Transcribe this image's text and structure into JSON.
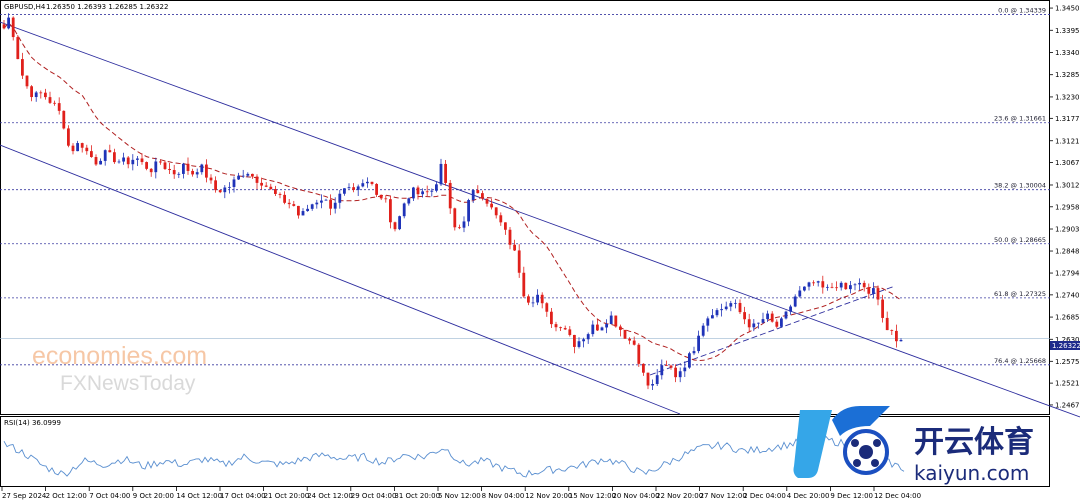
{
  "header": {
    "symbol": "GBPUSD,H4",
    "ohlc": "1.26350 1.26393 1.26285 1.26322"
  },
  "colors": {
    "bull": "#1f33b8",
    "bear": "#e0201b",
    "ma": "#b02020",
    "channel": "#2d2d9e",
    "fib": "#3a3aa0",
    "rsi": "#5a8fd0",
    "price_tag": "#1e2a8c"
  },
  "chart_data": [
    {
      "type": "candlestick",
      "title": "",
      "y_axis": {
        "range": [
          1.245,
          1.3465
        ],
        "ticks": [
          "1.34500",
          "1.33950",
          "1.33400",
          "1.32850",
          "1.32300",
          "1.31770",
          "1.31215",
          "1.30675",
          "1.30120",
          "1.29580",
          "1.29030",
          "1.28485",
          "1.27940",
          "1.27400",
          "1.26850",
          "1.26300",
          "1.25755",
          "1.25215",
          "1.24675"
        ]
      },
      "x_axis": {
        "ticks": [
          "27 Sep 2024",
          "2 Oct 12:00",
          "7 Oct 04:00",
          "9 Oct 20:00",
          "14 Oct 12:00",
          "17 Oct 04:00",
          "21 Oct 20:00",
          "24 Oct 12:00",
          "29 Oct 04:00",
          "31 Oct 20:00",
          "5 Nov 12:00",
          "8 Nov 04:00",
          "12 Nov 20:00",
          "15 Nov 12:00",
          "20 Nov 04:00",
          "22 Nov 20:00",
          "27 Nov 12:00",
          "2 Dec 04:00",
          "4 Dec 20:00",
          "9 Dec 12:00",
          "12 Dec 04:00"
        ]
      },
      "last_price": "1.26322",
      "fibonacci": [
        {
          "label": "0.0 @ 1.34339",
          "price": 1.34339
        },
        {
          "label": "23.6 @ 1.31661",
          "price": 1.31661
        },
        {
          "label": "38.2 @ 1.30004",
          "price": 1.30004
        },
        {
          "label": "50.0 @ 1.28665",
          "price": 1.28665
        },
        {
          "label": "61.8 @ 1.27325",
          "price": 1.27325
        },
        {
          "label": "76.4 @ 1.25668",
          "price": 1.25668
        }
      ],
      "price_path": [
        [
          0,
          1.34
        ],
        [
          4,
          1.343
        ],
        [
          10,
          1.338
        ],
        [
          16,
          1.33
        ],
        [
          22,
          1.326
        ],
        [
          30,
          1.323
        ],
        [
          38,
          1.324
        ],
        [
          46,
          1.322
        ],
        [
          54,
          1.32
        ],
        [
          60,
          1.316
        ],
        [
          64,
          1.311
        ],
        [
          70,
          1.31
        ],
        [
          76,
          1.312
        ],
        [
          84,
          1.309
        ],
        [
          92,
          1.307
        ],
        [
          100,
          1.309
        ],
        [
          108,
          1.308
        ],
        [
          116,
          1.307
        ],
        [
          124,
          1.307
        ],
        [
          132,
          1.308
        ],
        [
          140,
          1.306
        ],
        [
          148,
          1.305
        ],
        [
          156,
          1.307
        ],
        [
          164,
          1.305
        ],
        [
          172,
          1.304
        ],
        [
          180,
          1.306
        ],
        [
          188,
          1.304
        ],
        [
          196,
          1.306
        ],
        [
          204,
          1.303
        ],
        [
          210,
          1.3
        ],
        [
          218,
          1.3
        ],
        [
          226,
          1.301
        ],
        [
          234,
          1.303
        ],
        [
          242,
          1.305
        ],
        [
          250,
          1.303
        ],
        [
          258,
          1.302
        ],
        [
          266,
          1.3
        ],
        [
          274,
          1.298
        ],
        [
          282,
          1.297
        ],
        [
          290,
          1.296
        ],
        [
          296,
          1.293
        ],
        [
          302,
          1.295
        ],
        [
          310,
          1.297
        ],
        [
          318,
          1.298
        ],
        [
          326,
          1.296
        ],
        [
          334,
          1.298
        ],
        [
          342,
          1.3
        ],
        [
          350,
          1.299
        ],
        [
          358,
          1.301
        ],
        [
          366,
          1.302
        ],
        [
          372,
          1.3
        ],
        [
          378,
          1.298
        ],
        [
          384,
          1.298
        ],
        [
          388,
          1.289
        ],
        [
          394,
          1.292
        ],
        [
          400,
          1.296
        ],
        [
          406,
          1.299
        ],
        [
          412,
          1.3
        ],
        [
          418,
          1.3
        ],
        [
          426,
          1.299
        ],
        [
          432,
          1.302
        ],
        [
          438,
          1.306
        ],
        [
          444,
          1.299
        ],
        [
          448,
          1.291
        ],
        [
          454,
          1.29
        ],
        [
          460,
          1.293
        ],
        [
          466,
          1.298
        ],
        [
          472,
          1.3
        ],
        [
          478,
          1.299
        ],
        [
          484,
          1.297
        ],
        [
          490,
          1.294
        ],
        [
          496,
          1.292
        ],
        [
          502,
          1.289
        ],
        [
          508,
          1.286
        ],
        [
          514,
          1.282
        ],
        [
          518,
          1.276
        ],
        [
          522,
          1.273
        ],
        [
          528,
          1.273
        ],
        [
          534,
          1.274
        ],
        [
          540,
          1.27
        ],
        [
          546,
          1.268
        ],
        [
          552,
          1.266
        ],
        [
          558,
          1.267
        ],
        [
          564,
          1.265
        ],
        [
          570,
          1.262
        ],
        [
          576,
          1.263
        ],
        [
          582,
          1.264
        ],
        [
          588,
          1.266
        ],
        [
          594,
          1.266
        ],
        [
          600,
          1.267
        ],
        [
          606,
          1.269
        ],
        [
          612,
          1.267
        ],
        [
          618,
          1.265
        ],
        [
          624,
          1.263
        ],
        [
          630,
          1.262
        ],
        [
          636,
          1.257
        ],
        [
          642,
          1.252
        ],
        [
          648,
          1.251
        ],
        [
          654,
          1.255
        ],
        [
          660,
          1.256
        ],
        [
          666,
          1.256
        ],
        [
          672,
          1.254
        ],
        [
          678,
          1.256
        ],
        [
          684,
          1.258
        ],
        [
          690,
          1.261
        ],
        [
          696,
          1.266
        ],
        [
          702,
          1.268
        ],
        [
          708,
          1.27
        ],
        [
          714,
          1.27
        ],
        [
          720,
          1.271
        ],
        [
          726,
          1.272
        ],
        [
          732,
          1.271
        ],
        [
          738,
          1.269
        ],
        [
          744,
          1.267
        ],
        [
          750,
          1.266
        ],
        [
          756,
          1.267
        ],
        [
          762,
          1.269
        ],
        [
          768,
          1.267
        ],
        [
          774,
          1.266
        ],
        [
          780,
          1.268
        ],
        [
          786,
          1.271
        ],
        [
          792,
          1.274
        ],
        [
          798,
          1.275
        ],
        [
          804,
          1.276
        ],
        [
          810,
          1.277
        ],
        [
          816,
          1.276
        ],
        [
          822,
          1.275
        ],
        [
          828,
          1.276
        ],
        [
          834,
          1.277
        ],
        [
          840,
          1.275
        ],
        [
          846,
          1.276
        ],
        [
          852,
          1.277
        ],
        [
          858,
          1.276
        ],
        [
          864,
          1.274
        ],
        [
          870,
          1.276
        ],
        [
          874,
          1.272
        ],
        [
          878,
          1.268
        ],
        [
          884,
          1.266
        ],
        [
          890,
          1.265
        ],
        [
          894,
          1.261
        ],
        [
          898,
          1.262
        ],
        [
          902,
          1.2632
        ]
      ]
    },
    {
      "type": "line",
      "title": "",
      "indicator_label": "RSI(14) 36.0999",
      "rsi_path": [
        [
          0,
          62
        ],
        [
          20,
          52
        ],
        [
          40,
          38
        ],
        [
          60,
          30
        ],
        [
          80,
          44
        ],
        [
          100,
          40
        ],
        [
          120,
          46
        ],
        [
          140,
          38
        ],
        [
          160,
          44
        ],
        [
          180,
          40
        ],
        [
          200,
          46
        ],
        [
          220,
          40
        ],
        [
          240,
          48
        ],
        [
          260,
          42
        ],
        [
          280,
          40
        ],
        [
          300,
          46
        ],
        [
          320,
          50
        ],
        [
          340,
          46
        ],
        [
          360,
          48
        ],
        [
          380,
          42
        ],
        [
          400,
          50
        ],
        [
          420,
          48
        ],
        [
          440,
          58
        ],
        [
          460,
          40
        ],
        [
          480,
          44
        ],
        [
          500,
          36
        ],
        [
          520,
          30
        ],
        [
          540,
          34
        ],
        [
          560,
          36
        ],
        [
          580,
          40
        ],
        [
          600,
          46
        ],
        [
          620,
          40
        ],
        [
          640,
          30
        ],
        [
          660,
          40
        ],
        [
          680,
          50
        ],
        [
          700,
          58
        ],
        [
          720,
          60
        ],
        [
          740,
          54
        ],
        [
          760,
          56
        ],
        [
          780,
          60
        ],
        [
          800,
          64
        ],
        [
          820,
          66
        ],
        [
          840,
          62
        ],
        [
          860,
          60
        ],
        [
          880,
          44
        ],
        [
          900,
          36
        ]
      ]
    }
  ],
  "watermarks": {
    "economies": "economies.com",
    "fxnews": "FXNewsToday",
    "brand_cn": "开云体育",
    "brand_en": "kaiyun.com"
  }
}
